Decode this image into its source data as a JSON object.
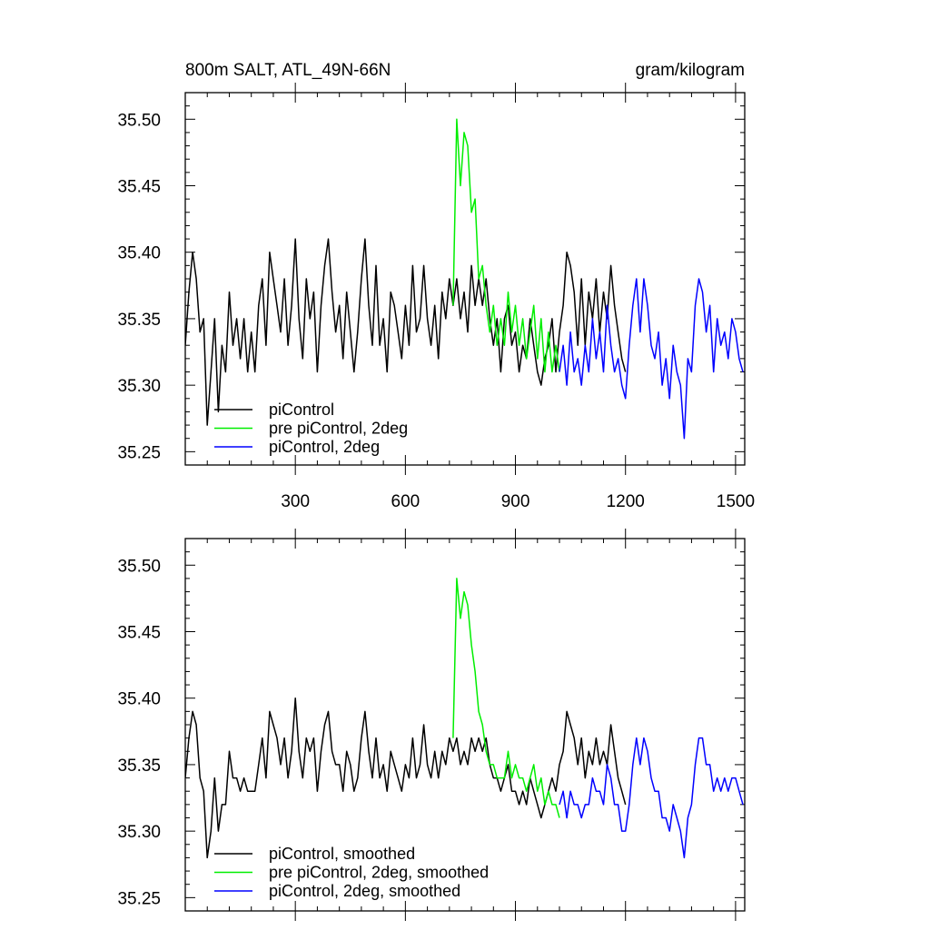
{
  "chart_data": [
    {
      "type": "line",
      "title": "800m SALT, ATL_49N-66N",
      "units": "gram/kilogram",
      "xlabel": "",
      "ylabel": "",
      "xlim": [
        0,
        1525
      ],
      "ylim": [
        35.24,
        35.52
      ],
      "xticks": [
        300,
        600,
        900,
        1200,
        1500
      ],
      "xtick_labels": [
        "300",
        "600",
        "900",
        "1200",
        "1500"
      ],
      "yticks": [
        35.25,
        35.3,
        35.35,
        35.4,
        35.45,
        35.5
      ],
      "ytick_labels": [
        "35.25",
        "35.30",
        "35.35",
        "35.40",
        "35.45",
        "35.50"
      ],
      "legend_position": "bottom-left",
      "series": [
        {
          "name": "piControl",
          "color": "#000000",
          "x": [
            0,
            10,
            20,
            30,
            40,
            50,
            60,
            70,
            80,
            90,
            100,
            110,
            120,
            130,
            140,
            150,
            160,
            170,
            180,
            190,
            200,
            210,
            220,
            230,
            240,
            250,
            260,
            270,
            280,
            290,
            300,
            310,
            320,
            330,
            340,
            350,
            360,
            370,
            380,
            390,
            400,
            410,
            420,
            430,
            440,
            450,
            460,
            470,
            480,
            490,
            500,
            510,
            520,
            530,
            540,
            550,
            560,
            570,
            580,
            590,
            600,
            610,
            620,
            630,
            640,
            650,
            660,
            670,
            680,
            690,
            700,
            710,
            720,
            730,
            740,
            750,
            760,
            770,
            780,
            790,
            800,
            810,
            820,
            830,
            840,
            850,
            860,
            870,
            880,
            890,
            900,
            910,
            920,
            930,
            940,
            950,
            960,
            970,
            980,
            990,
            1000,
            1010,
            1020,
            1030,
            1040,
            1050,
            1060,
            1070,
            1080,
            1090,
            1100,
            1110,
            1120,
            1130,
            1140,
            1150,
            1160,
            1170,
            1180,
            1190,
            1200
          ],
          "values": [
            35.33,
            35.37,
            35.4,
            35.38,
            35.34,
            35.35,
            35.27,
            35.31,
            35.35,
            35.28,
            35.33,
            35.31,
            35.37,
            35.33,
            35.35,
            35.32,
            35.35,
            35.31,
            35.34,
            35.31,
            35.36,
            35.38,
            35.33,
            35.4,
            35.38,
            35.36,
            35.34,
            35.38,
            35.33,
            35.36,
            35.41,
            35.35,
            35.32,
            35.38,
            35.35,
            35.37,
            35.31,
            35.36,
            35.39,
            35.41,
            35.37,
            35.34,
            35.36,
            35.32,
            35.37,
            35.34,
            35.31,
            35.34,
            35.38,
            35.41,
            35.36,
            35.33,
            35.39,
            35.33,
            35.35,
            35.31,
            35.37,
            35.36,
            35.34,
            35.32,
            35.36,
            35.33,
            35.39,
            35.34,
            35.35,
            35.39,
            35.35,
            35.33,
            35.36,
            35.32,
            35.37,
            35.35,
            35.38,
            35.36,
            35.38,
            35.35,
            35.37,
            35.34,
            35.39,
            35.36,
            35.38,
            35.36,
            35.38,
            35.35,
            35.33,
            35.35,
            35.31,
            35.35,
            35.36,
            35.33,
            35.34,
            35.31,
            35.33,
            35.32,
            35.35,
            35.33,
            35.31,
            35.3,
            35.32,
            35.33,
            35.35,
            35.31,
            35.34,
            35.36,
            35.4,
            35.39,
            35.37,
            35.33,
            35.38,
            35.33,
            35.37,
            35.35,
            35.38,
            35.34,
            35.37,
            35.35,
            35.39,
            35.36,
            35.34,
            35.32,
            35.31
          ]
        },
        {
          "name": "pre piControl, 2deg",
          "color": "#00ee00",
          "x": [
            730,
            740,
            750,
            760,
            770,
            780,
            790,
            800,
            810,
            820,
            830,
            840,
            850,
            860,
            870,
            880,
            890,
            900,
            910,
            920,
            930,
            940,
            950,
            960,
            970,
            980,
            990,
            1000,
            1010,
            1020
          ],
          "values": [
            35.36,
            35.5,
            35.45,
            35.49,
            35.48,
            35.43,
            35.44,
            35.38,
            35.39,
            35.36,
            35.34,
            35.36,
            35.33,
            35.35,
            35.33,
            35.37,
            35.34,
            35.36,
            35.33,
            35.35,
            35.32,
            35.34,
            35.36,
            35.32,
            35.35,
            35.31,
            35.34,
            35.31,
            35.33,
            35.31
          ]
        },
        {
          "name": "piControl, 2deg",
          "color": "#0000ff",
          "x": [
            1020,
            1030,
            1040,
            1050,
            1060,
            1070,
            1080,
            1090,
            1100,
            1110,
            1120,
            1130,
            1140,
            1150,
            1160,
            1170,
            1180,
            1190,
            1200,
            1210,
            1220,
            1230,
            1240,
            1250,
            1260,
            1270,
            1280,
            1290,
            1300,
            1310,
            1320,
            1330,
            1340,
            1350,
            1360,
            1370,
            1380,
            1390,
            1400,
            1410,
            1420,
            1430,
            1440,
            1450,
            1460,
            1470,
            1480,
            1490,
            1500,
            1510,
            1520
          ],
          "values": [
            35.31,
            35.33,
            35.3,
            35.34,
            35.31,
            35.32,
            35.3,
            35.33,
            35.31,
            35.35,
            35.32,
            35.34,
            35.31,
            35.36,
            35.33,
            35.31,
            35.32,
            35.3,
            35.29,
            35.33,
            35.36,
            35.38,
            35.34,
            35.38,
            35.36,
            35.33,
            35.32,
            35.34,
            35.3,
            35.32,
            35.29,
            35.33,
            35.31,
            35.3,
            35.26,
            35.32,
            35.31,
            35.36,
            35.38,
            35.37,
            35.34,
            35.36,
            35.31,
            35.35,
            35.33,
            35.34,
            35.32,
            35.35,
            35.34,
            35.32,
            35.31
          ]
        }
      ]
    },
    {
      "type": "line",
      "title": "",
      "units": "",
      "xlabel": "",
      "ylabel": "",
      "xlim": [
        0,
        1525
      ],
      "ylim": [
        35.24,
        35.52
      ],
      "xticks": [
        300,
        600,
        900,
        1200,
        1500
      ],
      "xtick_labels": [],
      "yticks": [
        35.25,
        35.3,
        35.35,
        35.4,
        35.45,
        35.5
      ],
      "ytick_labels": [
        "35.25",
        "35.30",
        "35.35",
        "35.40",
        "35.45",
        "35.50"
      ],
      "legend_position": "bottom-left",
      "series": [
        {
          "name": "piControl, smoothed",
          "color": "#000000",
          "x": [
            0,
            10,
            20,
            30,
            40,
            50,
            60,
            70,
            80,
            90,
            100,
            110,
            120,
            130,
            140,
            150,
            160,
            170,
            180,
            190,
            200,
            210,
            220,
            230,
            240,
            250,
            260,
            270,
            280,
            290,
            300,
            310,
            320,
            330,
            340,
            350,
            360,
            370,
            380,
            390,
            400,
            410,
            420,
            430,
            440,
            450,
            460,
            470,
            480,
            490,
            500,
            510,
            520,
            530,
            540,
            550,
            560,
            570,
            580,
            590,
            600,
            610,
            620,
            630,
            640,
            650,
            660,
            670,
            680,
            690,
            700,
            710,
            720,
            730,
            740,
            750,
            760,
            770,
            780,
            790,
            800,
            810,
            820,
            830,
            840,
            850,
            860,
            870,
            880,
            890,
            900,
            910,
            920,
            930,
            940,
            950,
            960,
            970,
            980,
            990,
            1000,
            1010,
            1020,
            1030,
            1040,
            1050,
            1060,
            1070,
            1080,
            1090,
            1100,
            1110,
            1120,
            1130,
            1140,
            1150,
            1160,
            1170,
            1180,
            1190,
            1200
          ],
          "values": [
            35.34,
            35.37,
            35.39,
            35.38,
            35.34,
            35.33,
            35.28,
            35.3,
            35.34,
            35.3,
            35.32,
            35.32,
            35.36,
            35.34,
            35.34,
            35.33,
            35.34,
            35.33,
            35.33,
            35.33,
            35.35,
            35.37,
            35.34,
            35.39,
            35.38,
            35.37,
            35.35,
            35.37,
            35.34,
            35.36,
            35.4,
            35.36,
            35.34,
            35.37,
            35.36,
            35.37,
            35.33,
            35.36,
            35.38,
            35.39,
            35.36,
            35.35,
            35.35,
            35.33,
            35.36,
            35.35,
            35.33,
            35.34,
            35.37,
            35.39,
            35.36,
            35.34,
            35.37,
            35.34,
            35.35,
            35.33,
            35.36,
            35.35,
            35.34,
            35.33,
            35.35,
            35.34,
            35.37,
            35.34,
            35.35,
            35.38,
            35.35,
            35.34,
            35.36,
            35.34,
            35.36,
            35.35,
            35.37,
            35.36,
            35.37,
            35.35,
            35.36,
            35.35,
            35.37,
            35.36,
            35.37,
            35.36,
            35.37,
            35.35,
            35.34,
            35.34,
            35.33,
            35.34,
            35.35,
            35.33,
            35.33,
            35.32,
            35.33,
            35.32,
            35.34,
            35.33,
            35.32,
            35.31,
            35.32,
            35.33,
            35.34,
            35.33,
            35.35,
            35.36,
            35.39,
            35.38,
            35.37,
            35.35,
            35.37,
            35.34,
            35.36,
            35.35,
            35.37,
            35.35,
            35.36,
            35.35,
            35.38,
            35.36,
            35.34,
            35.33,
            35.32
          ]
        },
        {
          "name": "pre piControl, 2deg, smoothed",
          "color": "#00ee00",
          "x": [
            730,
            740,
            750,
            760,
            770,
            780,
            790,
            800,
            810,
            820,
            830,
            840,
            850,
            860,
            870,
            880,
            890,
            900,
            910,
            920,
            930,
            940,
            950,
            960,
            970,
            980,
            990,
            1000,
            1010,
            1020
          ],
          "values": [
            35.37,
            35.49,
            35.46,
            35.48,
            35.47,
            35.44,
            35.42,
            35.39,
            35.38,
            35.36,
            35.35,
            35.35,
            35.34,
            35.34,
            35.34,
            35.36,
            35.34,
            35.35,
            35.34,
            35.34,
            35.33,
            35.34,
            35.35,
            35.33,
            35.34,
            35.32,
            35.33,
            35.32,
            35.32,
            35.31
          ]
        },
        {
          "name": "piControl, 2deg, smoothed",
          "color": "#0000ff",
          "x": [
            1020,
            1030,
            1040,
            1050,
            1060,
            1070,
            1080,
            1090,
            1100,
            1110,
            1120,
            1130,
            1140,
            1150,
            1160,
            1170,
            1180,
            1190,
            1200,
            1210,
            1220,
            1230,
            1240,
            1250,
            1260,
            1270,
            1280,
            1290,
            1300,
            1310,
            1320,
            1330,
            1340,
            1350,
            1360,
            1370,
            1380,
            1390,
            1400,
            1410,
            1420,
            1430,
            1440,
            1450,
            1460,
            1470,
            1480,
            1490,
            1500,
            1510,
            1520
          ],
          "values": [
            35.32,
            35.33,
            35.31,
            35.33,
            35.32,
            35.32,
            35.31,
            35.32,
            35.32,
            35.34,
            35.33,
            35.33,
            35.32,
            35.35,
            35.34,
            35.32,
            35.32,
            35.3,
            35.3,
            35.32,
            35.35,
            35.37,
            35.35,
            35.37,
            35.36,
            35.34,
            35.33,
            35.33,
            35.31,
            35.31,
            35.3,
            35.32,
            35.31,
            35.3,
            35.28,
            35.31,
            35.32,
            35.35,
            35.37,
            35.37,
            35.35,
            35.35,
            35.33,
            35.34,
            35.33,
            35.34,
            35.33,
            35.34,
            35.34,
            35.33,
            35.32
          ]
        }
      ]
    }
  ]
}
